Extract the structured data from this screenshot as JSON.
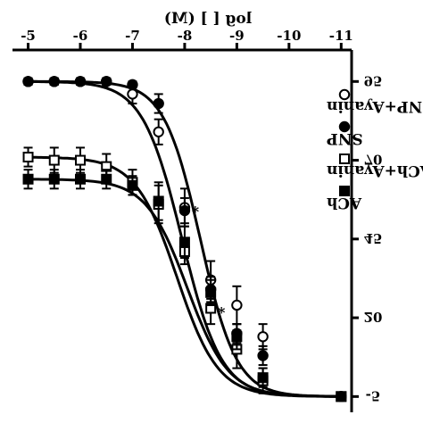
{
  "chart_data": {
    "type": "scatter",
    "mirrored": true,
    "xlabel": "log [ ] (M)",
    "ylabel": "",
    "x_ticks": [
      -11,
      -10,
      -9,
      -8,
      -7,
      -6,
      -5
    ],
    "x_tick_labels": [
      "-11",
      "-10",
      "-9",
      "-8",
      "-7",
      "-6",
      "-5"
    ],
    "xlim": [
      -11.2,
      -4.7
    ],
    "y_ticks": [
      -5,
      20,
      45,
      70,
      95
    ],
    "y_tick_labels": [
      "-5",
      "20",
      "45",
      "70",
      "95"
    ],
    "ylim": [
      -10,
      105
    ],
    "legend_position": "top-left",
    "annotation": "*",
    "series": [
      {
        "name": "SNP+Ayanin",
        "marker": "open-circle",
        "points": [
          {
            "x": -11.0,
            "y": -5,
            "err": 1
          },
          {
            "x": -9.5,
            "y": 14,
            "err": 4
          },
          {
            "x": -9.0,
            "y": 24,
            "err": 6
          },
          {
            "x": -8.5,
            "y": 32,
            "err": 6
          },
          {
            "x": -8.0,
            "y": 55,
            "err": 6,
            "star": true
          },
          {
            "x": -7.5,
            "y": 79,
            "err": 4
          },
          {
            "x": -7.0,
            "y": 91,
            "err": 3
          },
          {
            "x": -6.5,
            "y": 95,
            "err": 1
          },
          {
            "x": -6.0,
            "y": 95,
            "err": 1
          },
          {
            "x": -5.5,
            "y": 95,
            "err": 1
          },
          {
            "x": -5.0,
            "y": 95,
            "err": 1
          }
        ]
      },
      {
        "name": "SNP",
        "marker": "filled-circle",
        "points": [
          {
            "x": -11.0,
            "y": -5,
            "err": 1
          },
          {
            "x": -9.5,
            "y": 8,
            "err": 3
          },
          {
            "x": -9.0,
            "y": 15,
            "err": 3
          },
          {
            "x": -8.5,
            "y": 29,
            "err": 4
          },
          {
            "x": -8.0,
            "y": 54,
            "err": 4
          },
          {
            "x": -7.5,
            "y": 88,
            "err": 3
          },
          {
            "x": -7.0,
            "y": 94,
            "err": 1
          },
          {
            "x": -6.5,
            "y": 95,
            "err": 1
          },
          {
            "x": -6.0,
            "y": 95,
            "err": 1
          },
          {
            "x": -5.5,
            "y": 95,
            "err": 1
          },
          {
            "x": -5.0,
            "y": 95,
            "err": 1
          }
        ]
      },
      {
        "name": "ACh+Ayanin",
        "marker": "open-square",
        "points": [
          {
            "x": -11.0,
            "y": -5,
            "err": 1
          },
          {
            "x": -9.5,
            "y": 0,
            "err": 4
          },
          {
            "x": -9.0,
            "y": 10,
            "err": 6
          },
          {
            "x": -8.5,
            "y": 23,
            "err": 5,
            "star": true
          },
          {
            "x": -8.0,
            "y": 41,
            "err": 4
          },
          {
            "x": -7.5,
            "y": 56,
            "err": 6
          },
          {
            "x": -7.0,
            "y": 63,
            "err": 4
          },
          {
            "x": -6.5,
            "y": 68,
            "err": 4
          },
          {
            "x": -6.0,
            "y": 70,
            "err": 4
          },
          {
            "x": -5.5,
            "y": 70,
            "err": 4
          },
          {
            "x": -5.0,
            "y": 71,
            "err": 3
          }
        ]
      },
      {
        "name": "ACh",
        "marker": "filled-square",
        "points": [
          {
            "x": -11.0,
            "y": -5,
            "err": 1
          },
          {
            "x": -9.5,
            "y": 1,
            "err": 3
          },
          {
            "x": -9.0,
            "y": 14,
            "err": 4
          },
          {
            "x": -8.5,
            "y": 28,
            "err": 4
          },
          {
            "x": -8.0,
            "y": 44,
            "err": 5
          },
          {
            "x": -7.5,
            "y": 57,
            "err": 6
          },
          {
            "x": -7.0,
            "y": 62,
            "err": 3
          },
          {
            "x": -6.5,
            "y": 64,
            "err": 3
          },
          {
            "x": -6.0,
            "y": 64,
            "err": 3
          },
          {
            "x": -5.5,
            "y": 64,
            "err": 3
          },
          {
            "x": -5.0,
            "y": 64,
            "err": 3
          }
        ]
      }
    ]
  }
}
